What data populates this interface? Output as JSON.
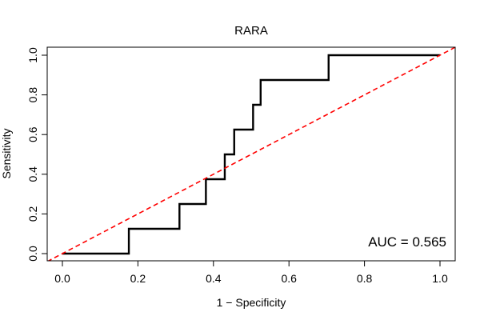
{
  "chart_data": {
    "type": "line",
    "title": "RARA",
    "xlabel": "1 − Specificity",
    "ylabel": "Sensitivity",
    "xlim": [
      0,
      1
    ],
    "ylim": [
      0,
      1
    ],
    "grid": false,
    "x_ticks": [
      0.0,
      0.2,
      0.4,
      0.6,
      0.8,
      1.0
    ],
    "x_tick_labels": [
      "0.0",
      "0.2",
      "0.4",
      "0.6",
      "0.8",
      "1.0"
    ],
    "y_ticks": [
      0.0,
      0.2,
      0.4,
      0.6,
      0.8,
      1.0
    ],
    "y_tick_labels": [
      "0.0",
      "0.2",
      "0.4",
      "0.6",
      "0.8",
      "1.0"
    ],
    "series": [
      {
        "name": "ROC curve",
        "style": "solid",
        "color": "#000000",
        "points": [
          [
            0.0,
            0.0
          ],
          [
            0.176,
            0.0
          ],
          [
            0.176,
            0.125
          ],
          [
            0.31,
            0.125
          ],
          [
            0.31,
            0.25
          ],
          [
            0.38,
            0.25
          ],
          [
            0.38,
            0.375
          ],
          [
            0.43,
            0.375
          ],
          [
            0.43,
            0.5
          ],
          [
            0.455,
            0.5
          ],
          [
            0.455,
            0.625
          ],
          [
            0.505,
            0.625
          ],
          [
            0.505,
            0.75
          ],
          [
            0.525,
            0.75
          ],
          [
            0.525,
            0.875
          ],
          [
            0.705,
            0.875
          ],
          [
            0.705,
            1.0
          ],
          [
            1.0,
            1.0
          ]
        ]
      },
      {
        "name": "chance line",
        "style": "dashed",
        "color": "#ff0000",
        "points": [
          [
            -0.04,
            -0.04
          ],
          [
            1.04,
            1.04
          ]
        ]
      }
    ],
    "annotations": [
      {
        "text": "AUC = 0.565",
        "placement": "bottom-right"
      }
    ]
  }
}
